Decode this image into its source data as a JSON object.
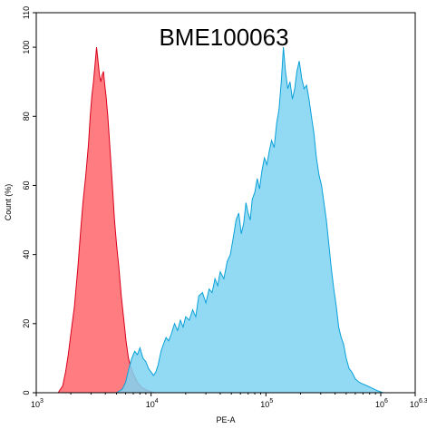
{
  "chart_data": {
    "type": "area",
    "title": "BME100063",
    "xlabel": "PE-A",
    "ylabel": "Count  (%)",
    "x_scale": "log10",
    "xlim": [
      1000,
      1995262
    ],
    "ylim": [
      0,
      110
    ],
    "grid": false,
    "legend": "none",
    "x_ticks": [
      {
        "base": "10",
        "exp": "3"
      },
      {
        "base": "10",
        "exp": "4"
      },
      {
        "base": "10",
        "exp": "5"
      },
      {
        "base": "10",
        "exp": "6"
      },
      {
        "base": "10",
        "exp": "6.3"
      }
    ],
    "x_tick_values": [
      1000,
      10000,
      100000,
      1000000,
      1995262
    ],
    "y_ticks": [
      "0",
      "20",
      "40",
      "60",
      "80",
      "100",
      "110"
    ],
    "y_tick_values": [
      0,
      20,
      40,
      60,
      80,
      100,
      110
    ],
    "series": [
      {
        "color": "#ff7c80",
        "stroke": "#d9001b",
        "points": [
          [
            1550,
            0
          ],
          [
            1700,
            2
          ],
          [
            1800,
            6
          ],
          [
            1900,
            11
          ],
          [
            2000,
            17
          ],
          [
            2150,
            25
          ],
          [
            2300,
            36
          ],
          [
            2450,
            48
          ],
          [
            2550,
            55
          ],
          [
            2700,
            63
          ],
          [
            2850,
            72
          ],
          [
            2950,
            80
          ],
          [
            3050,
            86
          ],
          [
            3150,
            90
          ],
          [
            3250,
            95
          ],
          [
            3350,
            100
          ],
          [
            3450,
            96
          ],
          [
            3550,
            92
          ],
          [
            3650,
            90
          ],
          [
            3750,
            92
          ],
          [
            3850,
            93
          ],
          [
            3950,
            89
          ],
          [
            4050,
            86
          ],
          [
            4200,
            80
          ],
          [
            4400,
            70
          ],
          [
            4600,
            60
          ],
          [
            4800,
            50
          ],
          [
            5000,
            43
          ],
          [
            5250,
            36
          ],
          [
            5500,
            28
          ],
          [
            5750,
            22
          ],
          [
            6050,
            15
          ],
          [
            6350,
            10
          ],
          [
            6700,
            7
          ],
          [
            7100,
            5
          ],
          [
            7600,
            3
          ],
          [
            8300,
            1.5
          ],
          [
            9500,
            0.5
          ],
          [
            11000,
            0
          ]
        ]
      },
      {
        "color": "#7fd3f2",
        "stroke": "#0aa1d8",
        "points": [
          [
            5000,
            0
          ],
          [
            5600,
            1
          ],
          [
            6000,
            3
          ],
          [
            6400,
            7
          ],
          [
            6800,
            10
          ],
          [
            7200,
            12
          ],
          [
            7600,
            11
          ],
          [
            8000,
            13
          ],
          [
            8500,
            10
          ],
          [
            9000,
            9
          ],
          [
            9500,
            7
          ],
          [
            10000,
            6
          ],
          [
            10500,
            5
          ],
          [
            11000,
            6
          ],
          [
            11500,
            8
          ],
          [
            12200,
            12
          ],
          [
            12800,
            14
          ],
          [
            13500,
            16
          ],
          [
            14200,
            15
          ],
          [
            15000,
            17
          ],
          [
            16000,
            20
          ],
          [
            17000,
            18
          ],
          [
            18000,
            21
          ],
          [
            19000,
            19
          ],
          [
            20000,
            22
          ],
          [
            21500,
            21
          ],
          [
            23000,
            24
          ],
          [
            24500,
            22
          ],
          [
            26000,
            28
          ],
          [
            28000,
            29
          ],
          [
            30000,
            26
          ],
          [
            32000,
            30
          ],
          [
            34000,
            29
          ],
          [
            36000,
            33
          ],
          [
            38000,
            31
          ],
          [
            40000,
            35
          ],
          [
            43000,
            33
          ],
          [
            46000,
            38
          ],
          [
            49000,
            40
          ],
          [
            52000,
            45
          ],
          [
            55000,
            50
          ],
          [
            58000,
            52
          ],
          [
            61000,
            46
          ],
          [
            64000,
            49
          ],
          [
            67000,
            55
          ],
          [
            70000,
            52
          ],
          [
            73000,
            50
          ],
          [
            76000,
            56
          ],
          [
            80000,
            58
          ],
          [
            84000,
            62
          ],
          [
            88000,
            59
          ],
          [
            92000,
            64
          ],
          [
            97000,
            68
          ],
          [
            102000,
            66
          ],
          [
            107000,
            70
          ],
          [
            112000,
            73
          ],
          [
            118000,
            71
          ],
          [
            124000,
            78
          ],
          [
            130000,
            82
          ],
          [
            136000,
            90
          ],
          [
            142000,
            100
          ],
          [
            148000,
            93
          ],
          [
            155000,
            88
          ],
          [
            162000,
            90
          ],
          [
            170000,
            85
          ],
          [
            178000,
            88
          ],
          [
            186000,
            93
          ],
          [
            195000,
            96
          ],
          [
            205000,
            91
          ],
          [
            215000,
            88
          ],
          [
            226000,
            89
          ],
          [
            237000,
            85
          ],
          [
            249000,
            80
          ],
          [
            262000,
            75
          ],
          [
            275000,
            68
          ],
          [
            290000,
            63
          ],
          [
            305000,
            60
          ],
          [
            320000,
            55
          ],
          [
            336000,
            50
          ],
          [
            353000,
            43
          ],
          [
            371000,
            36
          ],
          [
            390000,
            30
          ],
          [
            410000,
            25
          ],
          [
            430000,
            19
          ],
          [
            452000,
            16
          ],
          [
            475000,
            14
          ],
          [
            500000,
            10
          ],
          [
            530000,
            7
          ],
          [
            560000,
            6
          ],
          [
            600000,
            4
          ],
          [
            650000,
            3
          ],
          [
            700000,
            2.5
          ],
          [
            760000,
            2
          ],
          [
            820000,
            1.5
          ],
          [
            880000,
            1
          ],
          [
            950000,
            0.5
          ],
          [
            1050000,
            0
          ]
        ]
      }
    ]
  }
}
